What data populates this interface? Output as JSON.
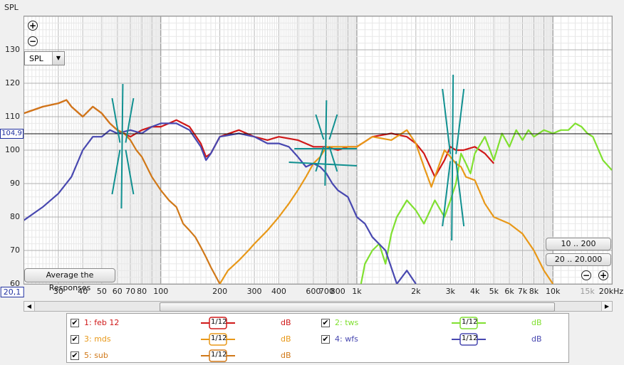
{
  "ylabel": "SPL",
  "y_ticks": [
    "130",
    "120",
    "110",
    "100",
    "90",
    "80",
    "70",
    "60"
  ],
  "x_ticks": [
    {
      "label": "20,1",
      "boxed": true
    },
    {
      "label": "30"
    },
    {
      "label": "40"
    },
    {
      "label": "50"
    },
    {
      "label": "60"
    },
    {
      "label": "70"
    },
    {
      "label": "80"
    },
    {
      "label": "100"
    },
    {
      "label": "200"
    },
    {
      "label": "300"
    },
    {
      "label": "400"
    },
    {
      "label": "600"
    },
    {
      "label": "700"
    },
    {
      "label": "800"
    },
    {
      "label": "1k"
    },
    {
      "label": "2k"
    },
    {
      "label": "3k"
    },
    {
      "label": "4k"
    },
    {
      "label": "5k"
    },
    {
      "label": "6k"
    },
    {
      "label": "7k"
    },
    {
      "label": "8k"
    },
    {
      "label": "10k"
    },
    {
      "label": "15k",
      "grey": true
    },
    {
      "label": "20kHz"
    }
  ],
  "cursor_value": "104,9",
  "dropdown_value": "SPL",
  "buttons": {
    "avg": "Average the Responses",
    "range1": "10 .. 200",
    "range2": "20 .. 20.000"
  },
  "zoom": {
    "in": "+",
    "out": "−"
  },
  "legend": [
    {
      "name": "1: feb 12",
      "color": "#d01818",
      "smoothing": "1/12",
      "unit": "dB"
    },
    {
      "name": "2: tws",
      "color": "#80e030",
      "smoothing": "1/12",
      "unit": "dB"
    },
    {
      "name": "3: mds",
      "color": "#e89818",
      "smoothing": "1/12",
      "unit": "dB"
    },
    {
      "name": "4: wfs",
      "color": "#4848b0",
      "smoothing": "1/12",
      "unit": "dB"
    },
    {
      "name": "5: sub",
      "color": "#d07818",
      "smoothing": "1/12",
      "unit": "dB"
    }
  ],
  "chart_data": {
    "type": "line",
    "x_scale": "log",
    "xlim": [
      20.1,
      20000
    ],
    "ylim": [
      60,
      140
    ],
    "cursor_y": 104.9,
    "grid": true,
    "series": [
      {
        "name": "1: feb 12",
        "color": "#d01818",
        "x": [
          20,
          25,
          30,
          33,
          35,
          40,
          45,
          50,
          55,
          60,
          65,
          70,
          80,
          90,
          100,
          110,
          120,
          140,
          160,
          170,
          180,
          200,
          250,
          300,
          350,
          400,
          500,
          600,
          700,
          800,
          900,
          1000,
          1200,
          1500,
          1800,
          2000,
          2200,
          2500,
          2800,
          3000,
          3200,
          3500,
          4000,
          4500,
          5000
        ],
        "y": [
          111,
          113,
          114,
          115,
          113,
          110,
          113,
          111,
          108,
          106,
          105,
          104,
          106,
          107,
          107,
          108,
          109,
          107,
          102,
          98,
          99,
          104,
          106,
          104,
          103,
          104,
          103,
          101,
          101,
          100,
          101,
          101,
          104,
          105,
          104,
          102,
          99,
          92,
          97,
          101,
          100,
          100,
          101,
          99,
          96
        ]
      },
      {
        "name": "2: tws",
        "color": "#80e030",
        "x": [
          1050,
          1100,
          1200,
          1300,
          1400,
          1500,
          1600,
          1800,
          2000,
          2200,
          2500,
          2800,
          3000,
          3200,
          3400,
          3600,
          3800,
          4000,
          4500,
          5000,
          5500,
          6000,
          6500,
          7000,
          7500,
          8000,
          9000,
          10000,
          11000,
          12000,
          13000,
          14000,
          15000,
          16000,
          18000,
          20000
        ],
        "y": [
          60,
          66,
          70,
          72,
          66,
          75,
          80,
          85,
          82,
          78,
          85,
          80,
          85,
          90,
          99,
          96,
          93,
          99,
          104,
          97,
          105,
          101,
          106,
          103,
          106,
          104,
          106,
          105,
          106,
          106,
          108,
          107,
          105,
          104,
          97,
          94
        ]
      },
      {
        "name": "3: mds",
        "color": "#e89818",
        "x": [
          200,
          220,
          250,
          280,
          300,
          350,
          400,
          450,
          500,
          550,
          600,
          650,
          700,
          800,
          900,
          1000,
          1200,
          1500,
          1800,
          2000,
          2200,
          2400,
          2500,
          2800,
          3000,
          3200,
          3400,
          3600,
          4000,
          4500,
          5000,
          6000,
          7000,
          8000,
          9000,
          10000
        ],
        "y": [
          60,
          64,
          67,
          70,
          72,
          76,
          80,
          84,
          88,
          92,
          96,
          98,
          101,
          101,
          101,
          101,
          104,
          103,
          106,
          102,
          95,
          89,
          92,
          100,
          98,
          96,
          95,
          92,
          91,
          84,
          80,
          78,
          75,
          70,
          64,
          60
        ]
      },
      {
        "name": "4: wfs",
        "color": "#4848b0",
        "x": [
          20,
          25,
          30,
          35,
          40,
          45,
          50,
          55,
          60,
          70,
          80,
          90,
          100,
          110,
          120,
          140,
          160,
          170,
          180,
          200,
          250,
          300,
          350,
          400,
          450,
          500,
          550,
          600,
          650,
          700,
          750,
          800,
          900,
          1000,
          1100,
          1200,
          1400,
          1600,
          1800,
          2000
        ],
        "y": [
          79,
          83,
          87,
          92,
          100,
          104,
          104,
          106,
          105,
          106,
          105,
          107,
          108,
          108,
          108,
          106,
          101,
          97,
          99,
          104,
          105,
          104,
          102,
          102,
          101,
          98,
          95,
          96,
          95,
          93,
          90,
          88,
          86,
          80,
          78,
          74,
          70,
          60,
          64,
          60
        ]
      },
      {
        "name": "5: sub",
        "color": "#d07818",
        "x": [
          20,
          25,
          30,
          33,
          35,
          40,
          45,
          50,
          55,
          60,
          65,
          70,
          75,
          80,
          90,
          100,
          110,
          120,
          130,
          140,
          150,
          160,
          170,
          180,
          200
        ],
        "y": [
          111,
          113,
          114,
          115,
          113,
          110,
          113,
          111,
          108,
          106,
          105,
          103,
          100,
          98,
          92,
          88,
          85,
          83,
          78,
          76,
          74,
          71,
          68,
          65,
          60
        ]
      }
    ]
  }
}
